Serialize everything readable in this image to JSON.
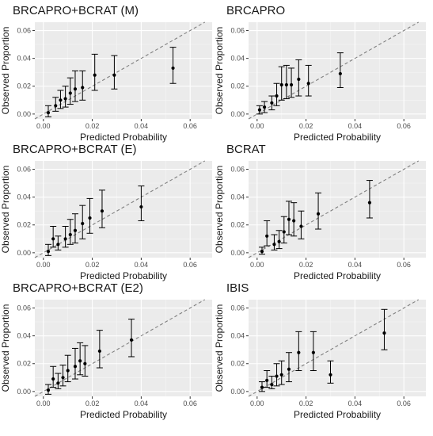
{
  "chart_data": [
    {
      "type": "scatter",
      "title": "BRCAPRO+BCRAT (M)",
      "xlabel": "Predicted Probability",
      "ylabel": "Observed Proportion",
      "xlim": [
        -0.0035,
        0.069
      ],
      "ylim": [
        -0.0035,
        0.066
      ],
      "x_ticks": [
        "0.00",
        "0.02",
        "0.04",
        "0.06"
      ],
      "y_ticks": [
        "0.00",
        "0.02",
        "0.04",
        "0.06"
      ],
      "grid": true,
      "reference_line": "y = x (dashed)",
      "points": [
        {
          "x": 0.002,
          "y": 0.001,
          "lo": -0.002,
          "hi": 0.006
        },
        {
          "x": 0.005,
          "y": 0.006,
          "lo": 0.002,
          "hi": 0.012
        },
        {
          "x": 0.007,
          "y": 0.01,
          "lo": 0.004,
          "hi": 0.017
        },
        {
          "x": 0.009,
          "y": 0.011,
          "lo": 0.005,
          "hi": 0.02
        },
        {
          "x": 0.011,
          "y": 0.015,
          "lo": 0.007,
          "hi": 0.026
        },
        {
          "x": 0.013,
          "y": 0.018,
          "lo": 0.009,
          "hi": 0.031
        },
        {
          "x": 0.016,
          "y": 0.019,
          "lo": 0.01,
          "hi": 0.031
        },
        {
          "x": 0.021,
          "y": 0.028,
          "lo": 0.017,
          "hi": 0.043
        },
        {
          "x": 0.029,
          "y": 0.028,
          "lo": 0.018,
          "hi": 0.042
        },
        {
          "x": 0.053,
          "y": 0.033,
          "lo": 0.022,
          "hi": 0.048
        }
      ]
    },
    {
      "type": "scatter",
      "title": "BRCAPRO",
      "xlabel": "Predicted Probability",
      "ylabel": "Observed Proportion",
      "xlim": [
        -0.0035,
        0.069
      ],
      "ylim": [
        -0.0035,
        0.066
      ],
      "x_ticks": [
        "0.00",
        "0.02",
        "0.04",
        "0.06"
      ],
      "y_ticks": [
        "0.00",
        "0.02",
        "0.04",
        "0.06"
      ],
      "grid": true,
      "reference_line": "y = x (dashed)",
      "points": [
        {
          "x": 0.001,
          "y": 0.003,
          "lo": 0.0,
          "hi": 0.006
        },
        {
          "x": 0.003,
          "y": 0.005,
          "lo": 0.001,
          "hi": 0.009
        },
        {
          "x": 0.006,
          "y": 0.008,
          "lo": 0.003,
          "hi": 0.013
        },
        {
          "x": 0.008,
          "y": 0.013,
          "lo": 0.006,
          "hi": 0.022
        },
        {
          "x": 0.01,
          "y": 0.021,
          "lo": 0.01,
          "hi": 0.034
        },
        {
          "x": 0.012,
          "y": 0.021,
          "lo": 0.011,
          "hi": 0.035
        },
        {
          "x": 0.014,
          "y": 0.021,
          "lo": 0.012,
          "hi": 0.033
        },
        {
          "x": 0.017,
          "y": 0.025,
          "lo": 0.013,
          "hi": 0.039
        },
        {
          "x": 0.021,
          "y": 0.022,
          "lo": 0.013,
          "hi": 0.035
        },
        {
          "x": 0.034,
          "y": 0.029,
          "lo": 0.019,
          "hi": 0.044
        }
      ]
    },
    {
      "type": "scatter",
      "title": "BRCAPRO+BCRAT (E)",
      "xlabel": "Predicted Probability",
      "ylabel": "Observed Proportion",
      "xlim": [
        -0.0035,
        0.069
      ],
      "ylim": [
        -0.0035,
        0.066
      ],
      "x_ticks": [
        "0.00",
        "0.02",
        "0.04",
        "0.06"
      ],
      "y_ticks": [
        "0.00",
        "0.02",
        "0.04",
        "0.06"
      ],
      "grid": true,
      "reference_line": "y = x (dashed)",
      "points": [
        {
          "x": 0.002,
          "y": 0.001,
          "lo": -0.002,
          "hi": 0.006
        },
        {
          "x": 0.004,
          "y": 0.01,
          "lo": 0.004,
          "hi": 0.019
        },
        {
          "x": 0.006,
          "y": 0.006,
          "lo": 0.002,
          "hi": 0.012
        },
        {
          "x": 0.009,
          "y": 0.01,
          "lo": 0.004,
          "hi": 0.019
        },
        {
          "x": 0.011,
          "y": 0.013,
          "lo": 0.006,
          "hi": 0.024
        },
        {
          "x": 0.013,
          "y": 0.016,
          "lo": 0.007,
          "hi": 0.028
        },
        {
          "x": 0.016,
          "y": 0.021,
          "lo": 0.01,
          "hi": 0.034
        },
        {
          "x": 0.019,
          "y": 0.025,
          "lo": 0.014,
          "hi": 0.039
        },
        {
          "x": 0.024,
          "y": 0.03,
          "lo": 0.018,
          "hi": 0.045
        },
        {
          "x": 0.04,
          "y": 0.033,
          "lo": 0.023,
          "hi": 0.048
        }
      ]
    },
    {
      "type": "scatter",
      "title": "BCRAT",
      "xlabel": "Predicted Probability",
      "ylabel": "Observed Proportion",
      "xlim": [
        -0.0035,
        0.069
      ],
      "ylim": [
        -0.0035,
        0.066
      ],
      "x_ticks": [
        "0.00",
        "0.02",
        "0.04",
        "0.06"
      ],
      "y_ticks": [
        "0.00",
        "0.02",
        "0.04",
        "0.06"
      ],
      "grid": true,
      "reference_line": "y = x (dashed)",
      "points": [
        {
          "x": 0.002,
          "y": 0.001,
          "lo": -0.001,
          "hi": 0.004
        },
        {
          "x": 0.004,
          "y": 0.012,
          "lo": 0.005,
          "hi": 0.023
        },
        {
          "x": 0.007,
          "y": 0.006,
          "lo": 0.002,
          "hi": 0.013
        },
        {
          "x": 0.009,
          "y": 0.008,
          "lo": 0.003,
          "hi": 0.016
        },
        {
          "x": 0.011,
          "y": 0.015,
          "lo": 0.007,
          "hi": 0.026
        },
        {
          "x": 0.013,
          "y": 0.024,
          "lo": 0.013,
          "hi": 0.037
        },
        {
          "x": 0.015,
          "y": 0.023,
          "lo": 0.012,
          "hi": 0.036
        },
        {
          "x": 0.018,
          "y": 0.019,
          "lo": 0.01,
          "hi": 0.03
        },
        {
          "x": 0.025,
          "y": 0.028,
          "lo": 0.017,
          "hi": 0.043
        },
        {
          "x": 0.046,
          "y": 0.036,
          "lo": 0.025,
          "hi": 0.052
        }
      ]
    },
    {
      "type": "scatter",
      "title": "BRCAPRO+BCRAT (E2)",
      "xlabel": "Predicted Probability",
      "ylabel": "Observed Proportion",
      "xlim": [
        -0.0035,
        0.069
      ],
      "ylim": [
        -0.0035,
        0.066
      ],
      "x_ticks": [
        "0.00",
        "0.02",
        "0.04",
        "0.06"
      ],
      "y_ticks": [
        "0.00",
        "0.02",
        "0.04",
        "0.06"
      ],
      "grid": true,
      "reference_line": "y = x (dashed)",
      "points": [
        {
          "x": 0.002,
          "y": 0.001,
          "lo": -0.002,
          "hi": 0.005
        },
        {
          "x": 0.004,
          "y": 0.009,
          "lo": 0.003,
          "hi": 0.018
        },
        {
          "x": 0.006,
          "y": 0.006,
          "lo": 0.002,
          "hi": 0.013
        },
        {
          "x": 0.008,
          "y": 0.01,
          "lo": 0.004,
          "hi": 0.019
        },
        {
          "x": 0.01,
          "y": 0.015,
          "lo": 0.007,
          "hi": 0.026
        },
        {
          "x": 0.013,
          "y": 0.018,
          "lo": 0.009,
          "hi": 0.031
        },
        {
          "x": 0.015,
          "y": 0.022,
          "lo": 0.012,
          "hi": 0.035
        },
        {
          "x": 0.017,
          "y": 0.02,
          "lo": 0.011,
          "hi": 0.033
        },
        {
          "x": 0.023,
          "y": 0.029,
          "lo": 0.017,
          "hi": 0.044
        },
        {
          "x": 0.036,
          "y": 0.037,
          "lo": 0.025,
          "hi": 0.052
        }
      ]
    },
    {
      "type": "scatter",
      "title": "IBIS",
      "xlabel": "Predicted Probability",
      "ylabel": "Observed Proportion",
      "xlim": [
        -0.0035,
        0.069
      ],
      "ylim": [
        -0.0035,
        0.066
      ],
      "x_ticks": [
        "0.00",
        "0.02",
        "0.04",
        "0.06"
      ],
      "y_ticks": [
        "0.00",
        "0.02",
        "0.04",
        "0.06"
      ],
      "grid": true,
      "reference_line": "y = x (dashed)",
      "points": [
        {
          "x": 0.002,
          "y": 0.003,
          "lo": 0.0,
          "hi": 0.007
        },
        {
          "x": 0.004,
          "y": 0.008,
          "lo": 0.003,
          "hi": 0.015
        },
        {
          "x": 0.006,
          "y": 0.005,
          "lo": 0.002,
          "hi": 0.011
        },
        {
          "x": 0.008,
          "y": 0.011,
          "lo": 0.004,
          "hi": 0.02
        },
        {
          "x": 0.01,
          "y": 0.012,
          "lo": 0.005,
          "hi": 0.022
        },
        {
          "x": 0.013,
          "y": 0.016,
          "lo": 0.007,
          "hi": 0.028
        },
        {
          "x": 0.017,
          "y": 0.028,
          "lo": 0.015,
          "hi": 0.043
        },
        {
          "x": 0.023,
          "y": 0.028,
          "lo": 0.015,
          "hi": 0.043
        },
        {
          "x": 0.03,
          "y": 0.012,
          "lo": 0.006,
          "hi": 0.022
        },
        {
          "x": 0.052,
          "y": 0.042,
          "lo": 0.03,
          "hi": 0.059
        }
      ]
    }
  ]
}
